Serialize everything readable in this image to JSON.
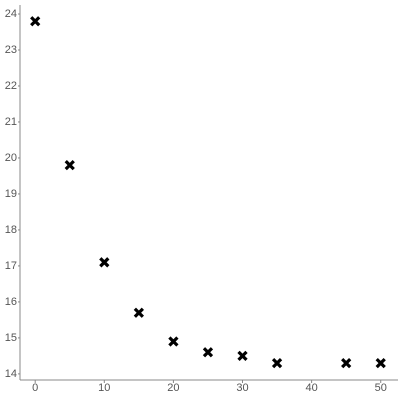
{
  "chart_data": {
    "type": "scatter",
    "marker": "x",
    "color": "#000000",
    "x": [
      0,
      5,
      10,
      15,
      20,
      25,
      30,
      35,
      45,
      50
    ],
    "values": [
      23.8,
      19.8,
      17.1,
      15.7,
      14.9,
      14.6,
      14.5,
      14.3,
      14.3,
      14.3
    ],
    "xlim": [
      -2.2,
      52.5
    ],
    "ylim": [
      13.83,
      24.25
    ],
    "xticks": [
      0,
      10,
      20,
      30,
      40,
      50
    ],
    "yticks": [
      14,
      15,
      16,
      17,
      18,
      19,
      20,
      21,
      22,
      23,
      24
    ],
    "grid": false
  }
}
